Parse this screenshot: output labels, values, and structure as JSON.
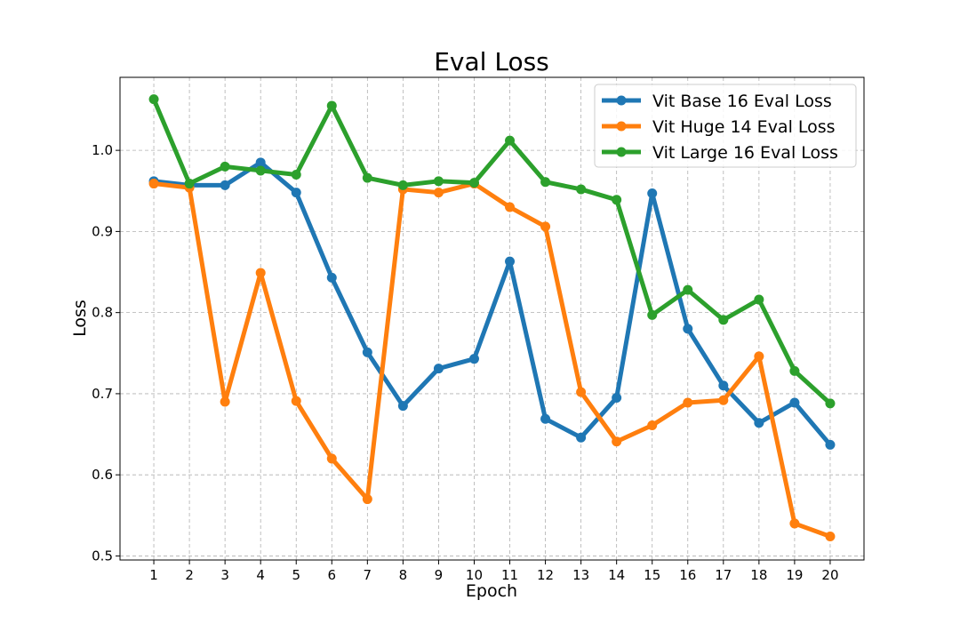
{
  "chart_data": {
    "type": "line",
    "title": "Eval Loss",
    "xlabel": "Epoch",
    "ylabel": "Loss",
    "x": [
      1,
      2,
      3,
      4,
      5,
      6,
      7,
      8,
      9,
      10,
      11,
      12,
      13,
      14,
      15,
      16,
      17,
      18,
      19,
      20
    ],
    "xlim": [
      0.05,
      20.95
    ],
    "ylim": [
      0.495,
      1.09
    ],
    "yticks": [
      0.5,
      0.6,
      0.7,
      0.8,
      0.9,
      1.0
    ],
    "ytick_labels": [
      "0.5",
      "0.6",
      "0.7",
      "0.8",
      "0.9",
      "1.0"
    ],
    "grid": true,
    "legend_position": "top-right",
    "series": [
      {
        "name": "Vit Base 16 Eval Loss",
        "color": "#1f77b4",
        "values": [
          0.962,
          0.957,
          0.957,
          0.985,
          0.948,
          0.843,
          0.751,
          0.685,
          0.731,
          0.743,
          0.863,
          0.669,
          0.646,
          0.695,
          0.947,
          0.78,
          0.71,
          0.664,
          0.689,
          0.637
        ]
      },
      {
        "name": "Vit Huge 14 Eval Loss",
        "color": "#ff7f0e",
        "values": [
          0.959,
          0.954,
          0.69,
          0.849,
          0.691,
          0.62,
          0.57,
          0.952,
          0.948,
          0.959,
          0.93,
          0.906,
          0.702,
          0.641,
          0.661,
          0.689,
          0.692,
          0.746,
          0.54,
          0.524
        ]
      },
      {
        "name": "Vit Large 16 Eval Loss",
        "color": "#2ca02c",
        "values": [
          1.063,
          0.959,
          0.98,
          0.975,
          0.97,
          1.055,
          0.966,
          0.957,
          0.962,
          0.96,
          1.012,
          0.961,
          0.952,
          0.939,
          0.797,
          0.828,
          0.791,
          0.816,
          0.728,
          0.688
        ]
      }
    ]
  }
}
